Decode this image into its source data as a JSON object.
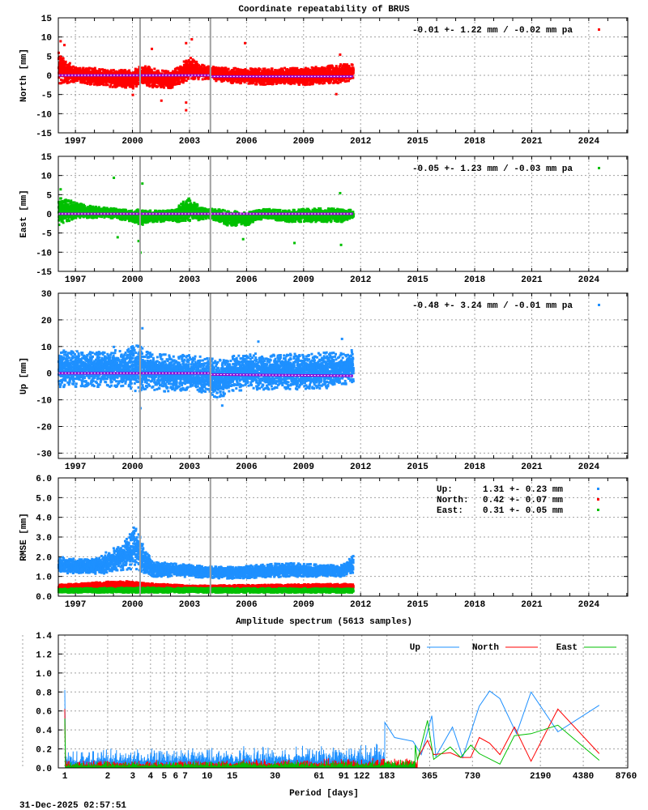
{
  "title": "Coordinate repeatability of BRUS",
  "timestamp": "31-Dec-2025 02:57:51",
  "chart_data": [
    {
      "type": "scatter",
      "ylabel": "North [mm]",
      "ylim": [
        -15,
        15
      ],
      "yticks": [
        "15",
        "10",
        "5",
        "0",
        "-5",
        "-10",
        "-15"
      ],
      "xlim": [
        1996.1,
        2026.05
      ],
      "xticks": [
        "1997",
        "2000",
        "2003",
        "2006",
        "2009",
        "2012",
        "2015",
        "2018",
        "2021",
        "2024"
      ],
      "grid": true,
      "color": "#ff0000",
      "legend": "-0.01 +- 1.22 mm / -0.02 mm pa",
      "legend_position": "top-right",
      "offset_lines": [
        2000.4,
        2004.1
      ],
      "mean_line": [
        [
          1996.1,
          0,
          2004.1,
          0
        ],
        [
          2004.1,
          -0.3,
          2011.6,
          -0.3
        ]
      ],
      "envelope": [
        [
          1996.1,
          -2,
          6
        ],
        [
          1996.5,
          -2,
          4
        ],
        [
          1997,
          -1.5,
          2.5
        ],
        [
          1998,
          -2.5,
          2
        ],
        [
          1999,
          -3,
          1.5
        ],
        [
          2000,
          -3.5,
          1.5
        ],
        [
          2000.5,
          -2,
          3
        ],
        [
          2001,
          -3,
          2
        ],
        [
          2002,
          -3.5,
          1
        ],
        [
          2003,
          -1,
          5
        ],
        [
          2003.5,
          -1,
          3
        ],
        [
          2004,
          -1,
          2.5
        ],
        [
          2005,
          -2,
          2
        ],
        [
          2006,
          -2,
          2
        ],
        [
          2007,
          -2.5,
          2
        ],
        [
          2008,
          -2,
          2
        ],
        [
          2009,
          -2.5,
          2
        ],
        [
          2010,
          -2,
          2.5
        ],
        [
          2011,
          -2,
          3
        ],
        [
          2011.6,
          -1,
          3
        ]
      ],
      "outliers": [
        [
          1996.2,
          9
        ],
        [
          1996.4,
          8
        ],
        [
          2000,
          -5
        ],
        [
          2001.5,
          -6.5
        ],
        [
          2002.8,
          -9
        ],
        [
          2002.8,
          -7
        ],
        [
          2002.8,
          8.5
        ],
        [
          2003.1,
          9.5
        ],
        [
          2005.9,
          8.5
        ],
        [
          2010.9,
          5.5
        ],
        [
          2010.7,
          -4.8
        ],
        [
          2001,
          7
        ]
      ]
    },
    {
      "type": "scatter",
      "ylabel": "East [mm]",
      "ylim": [
        -15,
        15
      ],
      "yticks": [
        "15",
        "10",
        "5",
        "0",
        "-5",
        "-10",
        "-15"
      ],
      "xlim": [
        1996.1,
        2026.05
      ],
      "xticks": [
        "1997",
        "2000",
        "2003",
        "2006",
        "2009",
        "2012",
        "2015",
        "2018",
        "2021",
        "2024"
      ],
      "grid": true,
      "color": "#00c000",
      "legend": "-0.05 +- 1.23 mm / -0.03 mm pa",
      "legend_position": "top-right",
      "offset_lines": [
        2000.4,
        2004.1
      ],
      "mean_line": [
        [
          1996.1,
          0,
          2011.6,
          0
        ]
      ],
      "envelope": [
        [
          1996.1,
          -3,
          5
        ],
        [
          1997,
          -1,
          3
        ],
        [
          1998,
          -1,
          2
        ],
        [
          1999,
          -1,
          1.5
        ],
        [
          2000,
          -2,
          1
        ],
        [
          2000.5,
          -3,
          1.5
        ],
        [
          2001,
          -2,
          1
        ],
        [
          2002,
          -2,
          1
        ],
        [
          2003,
          -2,
          4.5
        ],
        [
          2003.5,
          -1.5,
          2
        ],
        [
          2004,
          -1,
          1.5
        ],
        [
          2005,
          -3,
          1
        ],
        [
          2006,
          -3,
          0.5
        ],
        [
          2007,
          -1,
          1.5
        ],
        [
          2008,
          -2,
          1
        ],
        [
          2009,
          -2,
          1.5
        ],
        [
          2010,
          -2,
          1.5
        ],
        [
          2011,
          -2,
          1.5
        ],
        [
          2011.6,
          -1,
          1
        ]
      ],
      "outliers": [
        [
          2000.4,
          -10
        ],
        [
          2000.5,
          8
        ],
        [
          2000.3,
          -7
        ],
        [
          1999,
          9.5
        ],
        [
          1999.2,
          -6
        ],
        [
          2008.5,
          -7.5
        ],
        [
          2010.9,
          5.5
        ],
        [
          2010.95,
          -8
        ],
        [
          2005.8,
          -6.5
        ],
        [
          1996.2,
          6.5
        ]
      ]
    },
    {
      "type": "scatter",
      "ylabel": "Up [mm]",
      "ylim": [
        -32,
        30
      ],
      "yticks": [
        "30",
        "20",
        "10",
        "0",
        "-10",
        "-20",
        "-30"
      ],
      "xlim": [
        1996.1,
        2026.05
      ],
      "xticks": [
        "1997",
        "2000",
        "2003",
        "2006",
        "2009",
        "2012",
        "2015",
        "2018",
        "2021",
        "2024"
      ],
      "grid": true,
      "color": "#1e90ff",
      "legend": "-0.48 +- 3.24 mm / -0.01 mm pa",
      "legend_position": "top-right",
      "offset_lines": [
        2000.4,
        2004.1
      ],
      "mean_line": [
        [
          1996.1,
          0,
          2004.1,
          0
        ],
        [
          2004.1,
          -0.5,
          2011.6,
          -1
        ]
      ],
      "envelope": [
        [
          1996.1,
          -5,
          9
        ],
        [
          1998,
          -5,
          8
        ],
        [
          1999.5,
          -5,
          9
        ],
        [
          2000.3,
          -7,
          11
        ],
        [
          2001,
          -6,
          8
        ],
        [
          2002,
          -7,
          7
        ],
        [
          2003,
          -6,
          7
        ],
        [
          2004,
          -8,
          6
        ],
        [
          2004.5,
          -10,
          5
        ],
        [
          2005,
          -7,
          6
        ],
        [
          2006,
          -6,
          8
        ],
        [
          2007,
          -6,
          7
        ],
        [
          2008,
          -6,
          8
        ],
        [
          2009,
          -6,
          7
        ],
        [
          2010,
          -6,
          8
        ],
        [
          2011,
          -5,
          8
        ],
        [
          2011.6,
          -3,
          9
        ]
      ],
      "outliers": [
        [
          2000.5,
          17
        ],
        [
          2000.4,
          -13
        ],
        [
          2004.7,
          -12
        ],
        [
          2006.6,
          12
        ],
        [
          2011,
          13
        ],
        [
          1999,
          10
        ]
      ]
    },
    {
      "type": "scatter",
      "ylabel": "RMSE [mm]",
      "ylim": [
        0,
        6
      ],
      "yticks": [
        "6.0",
        "5.0",
        "4.0",
        "3.0",
        "2.0",
        "1.0",
        "0.0"
      ],
      "xlim": [
        1996.1,
        2026.05
      ],
      "xticks": [
        "1997",
        "2000",
        "2003",
        "2006",
        "2009",
        "2012",
        "2015",
        "2018",
        "2021",
        "2024"
      ],
      "grid": true,
      "offset_lines": [
        2000.4,
        2004.1
      ],
      "legend_position": "top-right",
      "series": [
        {
          "name": "Up:",
          "stat": "1.31 +- 0.23 mm",
          "color": "#1e90ff",
          "envelope": [
            [
              1996.1,
              1.2,
              2
            ],
            [
              1998,
              1.1,
              1.9
            ],
            [
              1999.5,
              1.3,
              2.8
            ],
            [
              2000.1,
              1.4,
              3.6
            ],
            [
              2001,
              1,
              1.8
            ],
            [
              2003,
              1,
              1.6
            ],
            [
              2005,
              0.9,
              1.5
            ],
            [
              2008,
              1,
              1.7
            ],
            [
              2011,
              1,
              1.6
            ],
            [
              2011.6,
              1.2,
              2.1
            ]
          ]
        },
        {
          "name": "North:",
          "stat": "0.42 +- 0.07 mm",
          "color": "#ff0000",
          "envelope": [
            [
              1996.1,
              0.35,
              0.6
            ],
            [
              1999.5,
              0.4,
              0.8
            ],
            [
              2000.5,
              0.4,
              0.7
            ],
            [
              2003,
              0.35,
              0.55
            ],
            [
              2011.6,
              0.35,
              0.65
            ]
          ]
        },
        {
          "name": "East:",
          "stat": "0.31 +- 0.05 mm",
          "color": "#00c000",
          "envelope": [
            [
              1996.1,
              0.2,
              0.4
            ],
            [
              2000,
              0.2,
              0.45
            ],
            [
              2011.6,
              0.2,
              0.4
            ]
          ]
        }
      ]
    },
    {
      "type": "line",
      "title": "Amplitude spectrum (5613 samples)",
      "xlabel": "Period [days]",
      "xscale": "log",
      "xlim": [
        1,
        8760
      ],
      "ylim": [
        0,
        1.4
      ],
      "xticks": [
        "1",
        "2",
        "3",
        "4",
        "5",
        "6",
        "7",
        "10",
        "15",
        "30",
        "61",
        "91",
        "122",
        "183",
        "365",
        "730",
        "2190",
        "4380",
        "8760"
      ],
      "yticks": [
        "1.4",
        "1.2",
        "1.0",
        "0.8",
        "0.6",
        "0.4",
        "0.2",
        "0.0"
      ],
      "grid": true,
      "legend_position": "top-right",
      "series": [
        {
          "name": "Up",
          "color": "#1e90ff",
          "peak_at_1": 0.82,
          "short_period_level": [
            0.05,
            0.2
          ],
          "points": [
            [
              177,
              0.48
            ],
            [
              207,
              0.32
            ],
            [
              279,
              0.28
            ],
            [
              319,
              0.14
            ],
            [
              378,
              0.55
            ],
            [
              404,
              0.12
            ],
            [
              528,
              0.43
            ],
            [
              623,
              0.11
            ],
            [
              815,
              0.65
            ],
            [
              963,
              0.81
            ],
            [
              1138,
              0.73
            ],
            [
              1488,
              0.36
            ],
            [
              1881,
              0.8
            ],
            [
              2904,
              0.38
            ],
            [
              5670,
              0.66
            ]
          ]
        },
        {
          "name": "North",
          "color": "#ff0000",
          "peak_at_1": 0.62,
          "short_period_level": [
            0.02,
            0.08
          ],
          "points": [
            [
              300,
              0.1
            ],
            [
              353,
              0.29
            ],
            [
              390,
              0.14
            ],
            [
              510,
              0.16
            ],
            [
              604,
              0.11
            ],
            [
              710,
              0.11
            ],
            [
              815,
              0.32
            ],
            [
              963,
              0.26
            ],
            [
              1138,
              0.14
            ],
            [
              1439,
              0.43
            ],
            [
              1881,
              0.07
            ],
            [
              2904,
              0.62
            ],
            [
              5670,
              0.15
            ]
          ]
        },
        {
          "name": "East",
          "color": "#00c000",
          "peak_at_1": 0.52,
          "short_period_level": [
            0.01,
            0.07
          ],
          "points": [
            [
              289,
              0.24
            ],
            [
              300,
              0.08
            ],
            [
              353,
              0.5
            ],
            [
              390,
              0.09
            ],
            [
              510,
              0.22
            ],
            [
              604,
              0.11
            ],
            [
              710,
              0.24
            ],
            [
              815,
              0.15
            ],
            [
              1138,
              0.04
            ],
            [
              1439,
              0.34
            ],
            [
              1881,
              0.36
            ],
            [
              2904,
              0.45
            ],
            [
              5670,
              0.08
            ]
          ]
        }
      ]
    }
  ]
}
